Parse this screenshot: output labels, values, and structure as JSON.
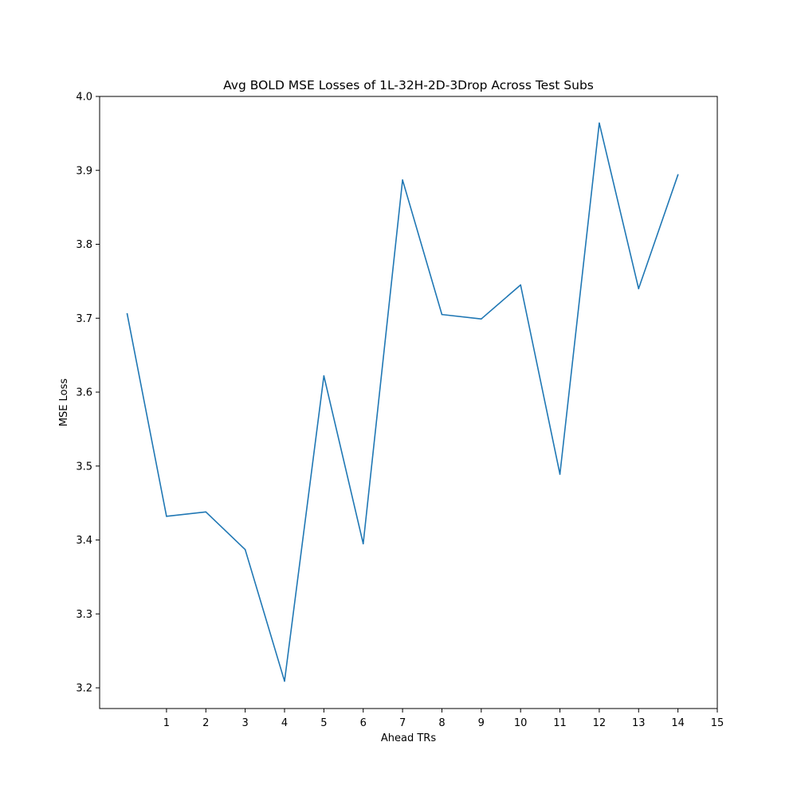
{
  "chart_data": {
    "type": "line",
    "title": "Avg BOLD MSE Losses of 1L-32H-2D-3Drop Across Test Subs",
    "xlabel": "Ahead TRs",
    "ylabel": "MSE Loss",
    "xlim": [
      -0.7,
      15
    ],
    "ylim": [
      3.172,
      4.0
    ],
    "grid": false,
    "x_ticks": [
      1,
      2,
      3,
      4,
      5,
      6,
      7,
      8,
      9,
      10,
      11,
      12,
      13,
      14,
      15
    ],
    "x_tick_labels": [
      "1",
      "2",
      "3",
      "4",
      "5",
      "6",
      "7",
      "8",
      "9",
      "10",
      "11",
      "12",
      "13",
      "14",
      "15"
    ],
    "y_ticks": [
      3.2,
      3.3,
      3.4,
      3.5,
      3.6,
      3.7,
      3.8,
      3.9,
      4.0
    ],
    "y_tick_labels": [
      "3.2",
      "3.3",
      "3.4",
      "3.5",
      "3.6",
      "3.7",
      "3.8",
      "3.9",
      "4.0"
    ],
    "series": [
      {
        "name": "Avg BOLD MSE Loss",
        "color": "#1f77b4",
        "x": [
          0,
          1,
          2,
          3,
          4,
          5,
          6,
          7,
          8,
          9,
          10,
          11,
          12,
          13,
          14
        ],
        "values": [
          3.706,
          3.432,
          3.438,
          3.387,
          3.209,
          3.622,
          3.395,
          3.887,
          3.705,
          3.699,
          3.745,
          3.489,
          3.964,
          3.74,
          3.894
        ]
      }
    ]
  }
}
